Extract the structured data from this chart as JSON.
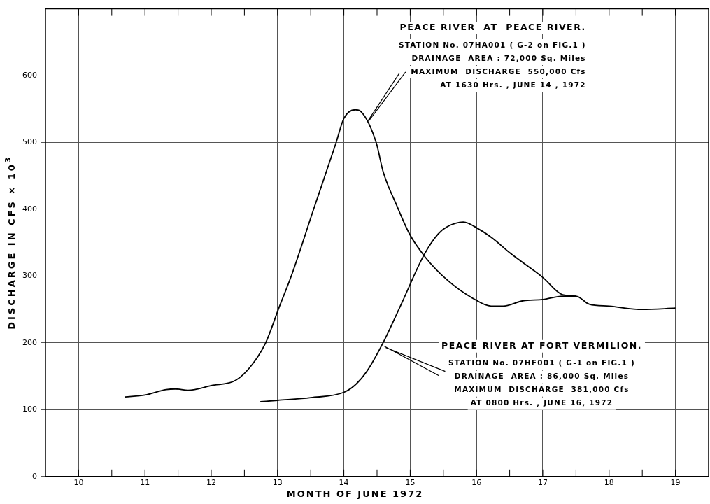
{
  "chart_data": {
    "type": "line",
    "xlabel": "MONTH  OF  JUNE  1972",
    "ylabel": "DISCHARGE  IN  CFS × 10$^{3}$",
    "xlim": [
      9.5,
      19.5
    ],
    "xticks": [
      10,
      {
        "value": 10.5,
        "label": null
      },
      11,
      {
        "value": 11.5,
        "label": null
      },
      12,
      {
        "value": 12.5,
        "label": null
      },
      13,
      {
        "value": 13.5,
        "label": null
      },
      14,
      {
        "value": 14.5,
        "label": null
      },
      15,
      {
        "value": 15.5,
        "label": null
      },
      16,
      {
        "value": 16.5,
        "label": null
      },
      17,
      {
        "value": 17.5,
        "label": null
      },
      18,
      {
        "value": 18.5,
        "label": null
      },
      19
    ],
    "ylim": [
      0,
      700
    ],
    "yticks": [
      0,
      100,
      200,
      300,
      400,
      500,
      600
    ],
    "grid": true,
    "legend": false,
    "marker": "none",
    "line_style": "solid",
    "series": [
      {
        "color": "#000000",
        "x": [
          10.7,
          11.0,
          11.32,
          11.46,
          11.65,
          12.0,
          12.37,
          12.62,
          12.82,
          13.03,
          13.21,
          13.55,
          13.88,
          14.0,
          14.17,
          14.26,
          14.49,
          14.59,
          14.8,
          14.99,
          15.23,
          15.56,
          15.94,
          16.22,
          16.4,
          16.7,
          17.0,
          17.3,
          17.5,
          17.7,
          18.0,
          18.5,
          19.0
        ],
        "values": [
          119,
          122,
          130,
          131,
          129,
          136,
          144,
          168,
          200,
          255,
          301,
          402,
          499,
          536,
          549,
          546,
          499,
          457,
          405,
          363,
          328,
          294,
          267,
          255,
          255,
          263,
          265,
          270,
          270,
          258,
          255,
          250,
          252
        ]
      },
      {
        "color": "#000000",
        "x": [
          12.74,
          13.0,
          13.5,
          14.0,
          14.17,
          14.35,
          14.59,
          14.87,
          15.21,
          15.42,
          15.56,
          15.8,
          16.04,
          16.25,
          16.5,
          17.0,
          17.3,
          17.5
        ],
        "values": [
          112,
          114,
          118,
          126,
          137,
          158,
          200,
          259,
          332,
          363,
          374,
          381,
          370,
          356,
          335,
          298,
          272,
          270
        ]
      }
    ],
    "annotations": [
      {
        "text": "PEACE RIVER  AT  PEACE RIVER.\nSTATION No. 07HA001 ( G-2 on FIG.1 )\nDRAINAGE  AREA : 72,000 Sq. Miles\nMAXIMUM  DISCHARGE  550,000 Cfs\nAT 1630 Hrs. , JUNE 14 , 1972",
        "x": 14.35,
        "y": 530
      },
      {
        "text": "PEACE RIVER AT FORT VERMILION.\nSTATION No. 07HF001 ( G-1 on FIG.1 )\nDRAINAGE  AREA : 86,000 Sq. Miles\nMAXIMUM  DISCHARGE  381,000 Cfs\nAT 0800 Hrs. , JUNE 16, 1972",
        "x": 14.6,
        "y": 195
      }
    ]
  }
}
